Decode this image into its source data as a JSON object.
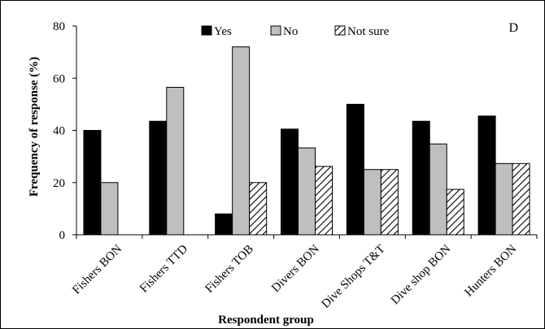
{
  "chart_data": {
    "type": "bar",
    "panel_label": "D",
    "xlabel": "Respondent group",
    "ylabel": "Frequency of response (%)",
    "ylim": [
      0,
      80
    ],
    "yticks": [
      0,
      20,
      40,
      60,
      80
    ],
    "categories": [
      "Fishers BON",
      "Fishers TTD",
      "Fishers TOB",
      "Divers BON",
      "Dive Shops T&T",
      "Dive shop BON",
      "Hunters BON"
    ],
    "legend_position": "top",
    "grid": false,
    "series": [
      {
        "name": "Yes",
        "color": "#000000",
        "pattern": "solid",
        "values": [
          40,
          43.5,
          8,
          40.5,
          50,
          43.5,
          45.5
        ]
      },
      {
        "name": "No",
        "color": "#bfbfbf",
        "pattern": "solid",
        "values": [
          20,
          56.5,
          72,
          33.3,
          25,
          34.8,
          27.3
        ]
      },
      {
        "name": "Not sure",
        "color": "#ffffff",
        "pattern": "hatch",
        "values": [
          0,
          0,
          20,
          26.2,
          25,
          17.4,
          27.3
        ]
      }
    ]
  }
}
